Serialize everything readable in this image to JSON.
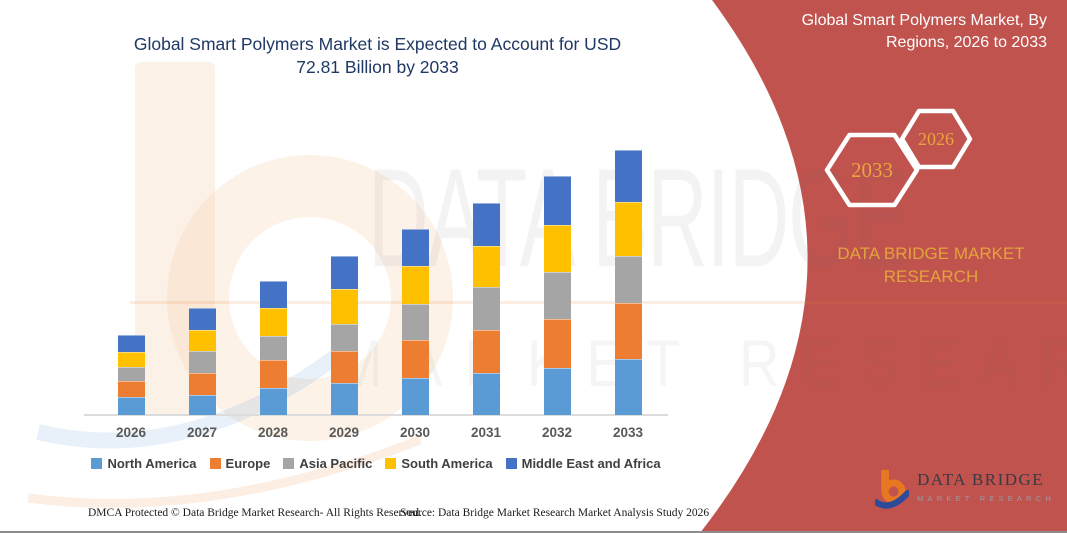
{
  "main_title": {
    "line1": "Global Smart Polymers Market is Expected to Account for USD",
    "line2": "72.81 Billion by 2033"
  },
  "banner": {
    "background_color": "#C1534E",
    "accent_gold": "#E2A33C",
    "title_line1": "Global Smart Polymers Market, By",
    "title_line2": "Regions, 2026 to 2033",
    "hexagon_back_year": "2033",
    "hexagon_front_year": "2026",
    "brand_caption": "DATA BRIDGE MARKET RESEARCH",
    "logo_title": "DATA BRIDGE",
    "logo_subtitle": "MARKET RESEARCH"
  },
  "watermark": {
    "text_line1": "DATA BRIDGE",
    "text_line2": "MARKET RESEARCH"
  },
  "chart_data": {
    "type": "bar",
    "stacked": true,
    "unit": "USD Billion",
    "title": "Global Smart Polymers Market is Expected to Account for USD 72.81 Billion by 2033",
    "xlabel": "",
    "ylabel": "",
    "y_axis_visible": false,
    "ylim": [
      0,
      80
    ],
    "grid": false,
    "legend_position": "bottom",
    "categories": [
      "2026",
      "2027",
      "2028",
      "2029",
      "2030",
      "2031",
      "2032",
      "2033"
    ],
    "series": [
      {
        "name": "North America",
        "color": "#5B9BD5",
        "values": [
          5.0,
          5.6,
          7.4,
          8.8,
          10.1,
          11.6,
          12.9,
          15.3
        ]
      },
      {
        "name": "Europe",
        "color": "#ED7D31",
        "values": [
          4.4,
          5.9,
          7.7,
          8.9,
          10.4,
          11.7,
          13.4,
          15.4
        ]
      },
      {
        "name": "Asia Pacific",
        "color": "#A5A5A5",
        "values": [
          3.9,
          6.2,
          6.5,
          7.4,
          10.1,
          11.9,
          13.0,
          13.0
        ]
      },
      {
        "name": "South America",
        "color": "#FFC000",
        "values": [
          4.0,
          5.7,
          7.7,
          9.6,
          10.3,
          11.3,
          13.0,
          14.9
        ]
      },
      {
        "name": "Middle East and Africa",
        "color": "#4472C4",
        "values": [
          4.7,
          6.0,
          7.5,
          9.0,
          10.2,
          11.8,
          13.4,
          14.2
        ]
      }
    ],
    "totals": [
      22.0,
      29.4,
      36.8,
      43.7,
      51.1,
      58.3,
      65.7,
      72.8
    ]
  },
  "footer": {
    "left": "DMCA Protected © Data Bridge Market Research-  All Rights Reserved.",
    "right": "Source: Data Bridge Market Research  Market Analysis Study 2026"
  }
}
